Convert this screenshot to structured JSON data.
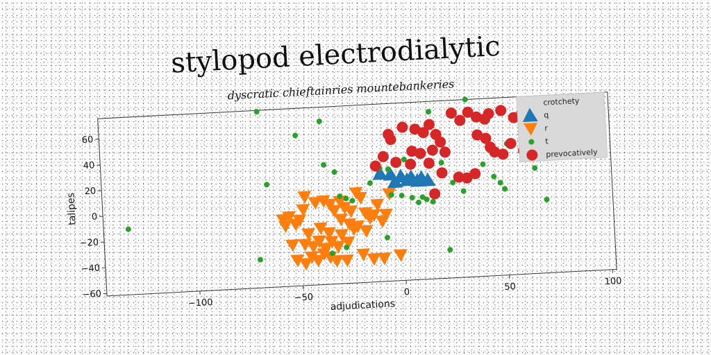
{
  "chart_data": {
    "type": "scatter",
    "title": "stylopod electrodialytic",
    "subtitle": "dyscratic chieftainries mountebankeries",
    "xlabel": "adjudications",
    "ylabel": "talipes",
    "xlim": [
      -145,
      102
    ],
    "ylim": [
      -62,
      76
    ],
    "x_ticks": [
      -100,
      -50,
      0,
      50,
      100
    ],
    "y_ticks": [
      -60,
      -40,
      -20,
      0,
      20,
      40,
      60
    ],
    "x_tick_labels": [
      "−100",
      "−50",
      "0",
      "50",
      "100"
    ],
    "y_tick_labels": [
      "−60",
      "−40",
      "−20",
      "0",
      "20",
      "40",
      "60"
    ],
    "grid": false,
    "legend": {
      "title": "crotchety",
      "position": "top-right",
      "entries": [
        "q",
        "r",
        "t",
        "prevocatively"
      ]
    },
    "series": [
      {
        "name": "q",
        "marker": "triangle-up",
        "color": "#1f77b4",
        "points": [
          [
            -10,
            22
          ],
          [
            -5,
            21
          ],
          [
            0,
            19
          ],
          [
            5,
            18
          ],
          [
            10,
            17
          ],
          [
            -3,
            15
          ],
          [
            3,
            16
          ],
          [
            8,
            15
          ],
          [
            13,
            15
          ]
        ]
      },
      {
        "name": "r",
        "marker": "triangle-down",
        "color": "#ff7f0e",
        "points": [
          [
            -58,
            -10
          ],
          [
            -55,
            -8
          ],
          [
            -50,
            -11
          ],
          [
            -57,
            -15
          ],
          [
            -52,
            -14
          ],
          [
            -48,
            -3
          ],
          [
            -47,
            7
          ],
          [
            -42,
            2
          ],
          [
            -38,
            3
          ],
          [
            -35,
            0
          ],
          [
            -33,
            -5
          ],
          [
            -30,
            2
          ],
          [
            -28,
            -3
          ],
          [
            -25,
            -6
          ],
          [
            -22,
            8
          ],
          [
            -20,
            4
          ],
          [
            -18,
            -8
          ],
          [
            -16,
            -12
          ],
          [
            -14,
            -10
          ],
          [
            -10,
            -15
          ],
          [
            -8,
            -10
          ],
          [
            -12,
            -2
          ],
          [
            -6,
            6
          ],
          [
            -48,
            -30
          ],
          [
            -44,
            -32
          ],
          [
            -41,
            -28
          ],
          [
            -38,
            -34
          ],
          [
            -35,
            -29
          ],
          [
            -32,
            -33
          ],
          [
            -30,
            -24
          ],
          [
            -27,
            -30
          ],
          [
            -24,
            -20
          ],
          [
            -40,
            -18
          ],
          [
            -36,
            -22
          ],
          [
            -52,
            -42
          ],
          [
            -48,
            -45
          ],
          [
            -45,
            -40
          ],
          [
            -42,
            -43
          ],
          [
            -39,
            -38
          ],
          [
            -36,
            -41
          ],
          [
            -33,
            -44
          ],
          [
            -20,
            -40
          ],
          [
            -15,
            -44
          ],
          [
            -10,
            -44
          ],
          [
            -2,
            -42
          ],
          [
            -30,
            -12
          ],
          [
            -26,
            -16
          ],
          [
            -22,
            -18
          ],
          [
            -18,
            -22
          ],
          [
            -54,
            -30
          ],
          [
            -28,
            -44
          ],
          [
            -46,
            -22
          ]
        ]
      },
      {
        "name": "t",
        "marker": "circle-small",
        "color": "#2ca02c",
        "points": [
          [
            -133,
            -11
          ],
          [
            -68,
            75
          ],
          [
            -65,
            18
          ],
          [
            -50,
            55
          ],
          [
            -38,
            65
          ],
          [
            -37,
            31
          ],
          [
            -32,
            25
          ],
          [
            -70,
            -40
          ],
          [
            -35,
            -38
          ],
          [
            -28,
            -34
          ],
          [
            -8,
            -28
          ],
          [
            -30,
            6
          ],
          [
            -27,
            4
          ],
          [
            -24,
            2
          ],
          [
            -5,
            5
          ],
          [
            0,
            4
          ],
          [
            5,
            2
          ],
          [
            -10,
            26
          ],
          [
            -6,
            25
          ],
          [
            2,
            32
          ],
          [
            10,
            2
          ],
          [
            8,
            -2
          ],
          [
            12,
            0
          ],
          [
            15,
            68
          ],
          [
            20,
            28
          ],
          [
            25,
            12
          ],
          [
            30,
            5
          ],
          [
            33,
            76
          ],
          [
            22,
            -40
          ],
          [
            40,
            25
          ],
          [
            45,
            15
          ],
          [
            48,
            10
          ],
          [
            50,
            5
          ],
          [
            50,
            30
          ],
          [
            52,
            40
          ],
          [
            62,
            30
          ],
          [
            65,
            20
          ],
          [
            67,
            35
          ],
          [
            72,
            40
          ],
          [
            75,
            46
          ],
          [
            70,
            -5
          ],
          [
            80,
            30
          ],
          [
            15,
            -2
          ],
          [
            -15,
            15
          ]
        ]
      },
      {
        "name": "prevocatively",
        "marker": "circle",
        "color": "#d62728",
        "points": [
          [
            -5,
            52
          ],
          [
            -4,
            48
          ],
          [
            2,
            57
          ],
          [
            8,
            55
          ],
          [
            12,
            52
          ],
          [
            15,
            58
          ],
          [
            18,
            50
          ],
          [
            20,
            44
          ],
          [
            22,
            36
          ],
          [
            26,
            66
          ],
          [
            30,
            60
          ],
          [
            34,
            66
          ],
          [
            38,
            62
          ],
          [
            42,
            60
          ],
          [
            44,
            64
          ],
          [
            50,
            66
          ],
          [
            56,
            60
          ],
          [
            60,
            63
          ],
          [
            62,
            56
          ],
          [
            38,
            48
          ],
          [
            42,
            45
          ],
          [
            44,
            38
          ],
          [
            46,
            34
          ],
          [
            50,
            32
          ],
          [
            54,
            40
          ],
          [
            60,
            34
          ],
          [
            64,
            32
          ],
          [
            68,
            30
          ],
          [
            -8,
            35
          ],
          [
            -2,
            30
          ],
          [
            5,
            28
          ],
          [
            14,
            28
          ],
          [
            20,
            20
          ],
          [
            28,
            16
          ],
          [
            32,
            15
          ],
          [
            36,
            18
          ],
          [
            6,
            38
          ],
          [
            10,
            36
          ],
          [
            16,
            38
          ],
          [
            -12,
            28
          ],
          [
            16,
            4
          ]
        ]
      }
    ]
  }
}
